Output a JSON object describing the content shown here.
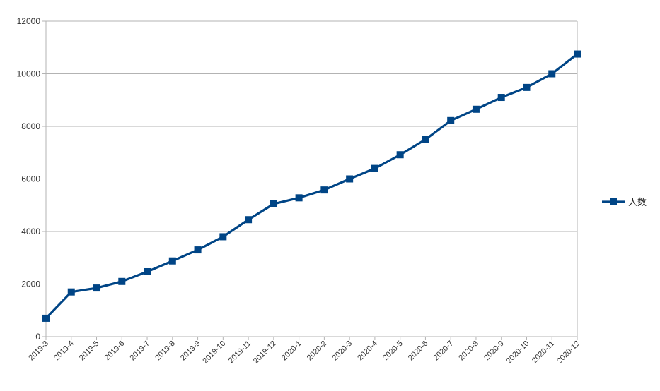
{
  "chart_data": {
    "type": "line",
    "title": "",
    "xlabel": "",
    "ylabel": "",
    "ylim": [
      0,
      12000
    ],
    "yticks": [
      0,
      2000,
      4000,
      6000,
      8000,
      10000,
      12000
    ],
    "grid": "horizontal",
    "legend_position": "right",
    "categories": [
      "2019-3",
      "2019-4",
      "2019-5",
      "2019-6",
      "2019-7",
      "2019-8",
      "2019-9",
      "2019-10",
      "2019-11",
      "2019-12",
      "2020-1",
      "2020-2",
      "2020-3",
      "2020-4",
      "2020-5",
      "2020-6",
      "2020-7",
      "2020-8",
      "2020-9",
      "2020-10",
      "2020-11",
      "2020-12"
    ],
    "series": [
      {
        "name": "人数",
        "color": "#004586",
        "marker": "square",
        "values": [
          700,
          1700,
          1850,
          2100,
          2470,
          2880,
          3300,
          3800,
          4450,
          5050,
          5280,
          5580,
          6000,
          6400,
          6920,
          7500,
          8220,
          8650,
          9100,
          9480,
          10000,
          10750
        ]
      }
    ]
  }
}
